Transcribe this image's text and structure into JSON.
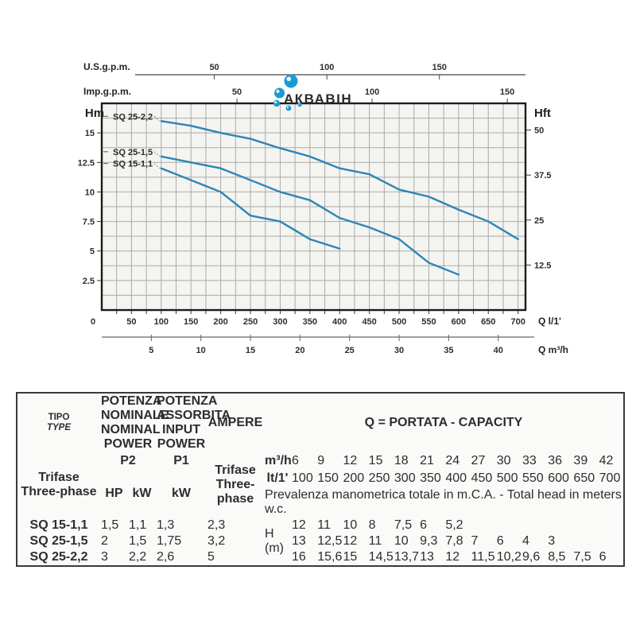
{
  "watermark": {
    "brand": "АКВАВІН",
    "bubble_color": "#1b9bd6"
  },
  "chart_data": {
    "type": "line",
    "title": "",
    "bg": "#f4f4f1",
    "grid_color": "#abaaa8",
    "border_color": "#1c1c1c",
    "curve_color": "#2c85b7",
    "grid": "on",
    "x": {
      "label": "Q l/1'",
      "min": 0,
      "max": 712.5,
      "minor": 25,
      "ticks": [
        0,
        50,
        100,
        150,
        200,
        250,
        300,
        350,
        400,
        450,
        500,
        550,
        600,
        650,
        700
      ]
    },
    "y": {
      "label": "Hm",
      "min": 0,
      "max": 17.5,
      "minor": 1.25,
      "ticks": [
        2.5,
        5,
        7.5,
        10,
        12.5,
        15
      ]
    },
    "y_right": {
      "label": "Hft",
      "ticks": [
        12.5,
        25,
        37.5,
        50
      ],
      "m_per_ft": 0.3048
    },
    "x_top_us": {
      "label": "U.S.g.p.m.",
      "ticks": [
        50,
        100,
        150
      ],
      "lmin_per_unit": 3.785
    },
    "x_top_imp": {
      "label": "Imp.g.p.m.",
      "ticks": [
        50,
        100,
        150
      ],
      "lmin_per_unit": 4.546
    },
    "x_bottom_m3h": {
      "label": "Q m³/h",
      "ticks": [
        5,
        10,
        15,
        20,
        25,
        30,
        35,
        40
      ],
      "lmin_per_unit": 16.6667
    },
    "series": [
      {
        "name": "SQ 25-2,2",
        "q_lmin": [
          100,
          150,
          200,
          250,
          300,
          350,
          400,
          450,
          500,
          550,
          600,
          650,
          700
        ],
        "h_m": [
          16,
          15.6,
          15,
          14.5,
          13.7,
          13,
          12,
          11.5,
          10.2,
          9.6,
          8.5,
          7.5,
          6
        ]
      },
      {
        "name": "SQ 25-1,5",
        "q_lmin": [
          100,
          150,
          200,
          250,
          300,
          350,
          400,
          450,
          500,
          550,
          600
        ],
        "h_m": [
          13,
          12.5,
          12,
          11,
          10,
          9.3,
          7.8,
          7,
          6,
          4,
          3
        ]
      },
      {
        "name": "SQ 15-1,1",
        "q_lmin": [
          100,
          150,
          200,
          250,
          300,
          350,
          400
        ],
        "h_m": [
          12,
          11,
          10,
          8,
          7.5,
          6,
          5.2
        ]
      }
    ]
  },
  "table": {
    "tipo": {
      "title": "TIPO",
      "subtitle": "TYPE",
      "phase_it": "Trifase",
      "phase_en": "Three-phase"
    },
    "p2": {
      "l1": "POTENZA",
      "l2": "NOMINALE",
      "l3": "NOMINAL",
      "l4": "POWER",
      "code": "P2",
      "unit_hp": "HP",
      "unit_kw": "kW"
    },
    "p1": {
      "l1": "POTENZA",
      "l2": "ASSORBITA",
      "l3": "INPUT",
      "l4": "POWER",
      "code": "P1",
      "unit": "kW"
    },
    "ampere": {
      "title": "AMPERE",
      "phase_it": "Trifase",
      "phase_en": "Three-phase"
    },
    "capacity": {
      "title_it": "Q = PORTATA - ",
      "title_en": "CAPACITY",
      "unit_m3h": "m³/h",
      "unit_lt": "lt/1'",
      "m3h": [
        6,
        9,
        12,
        15,
        18,
        21,
        24,
        27,
        30,
        33,
        36,
        39,
        42
      ],
      "lt1": [
        100,
        150,
        200,
        250,
        300,
        350,
        400,
        450,
        500,
        550,
        600,
        650,
        700
      ],
      "note_it": "Prevalenza manometrica totale in m.C.A. - ",
      "note_en": "Total head in meters w.c.",
      "h_label": "H",
      "h_unit": "(m)"
    },
    "rows": [
      {
        "type": "SQ 15-1,1",
        "hp": "1,5",
        "kw": "1,1",
        "p1kw": "1,3",
        "amp": "2,3",
        "heads": [
          "12",
          "11",
          "10",
          "8",
          "7,5",
          "6",
          "5,2",
          "",
          "",
          "",
          "",
          "",
          ""
        ]
      },
      {
        "type": "SQ 25-1,5",
        "hp": "2",
        "kw": "1,5",
        "p1kw": "1,75",
        "amp": "3,2",
        "heads": [
          "13",
          "12,5",
          "12",
          "11",
          "10",
          "9,3",
          "7,8",
          "7",
          "6",
          "4",
          "3",
          "",
          ""
        ]
      },
      {
        "type": "SQ 25-2,2",
        "hp": "3",
        "kw": "2,2",
        "p1kw": "2,6",
        "amp": "5",
        "heads": [
          "16",
          "15,6",
          "15",
          "14,5",
          "13,7",
          "13",
          "12",
          "11,5",
          "10,2",
          "9,6",
          "8,5",
          "7,5",
          "6"
        ]
      }
    ]
  }
}
